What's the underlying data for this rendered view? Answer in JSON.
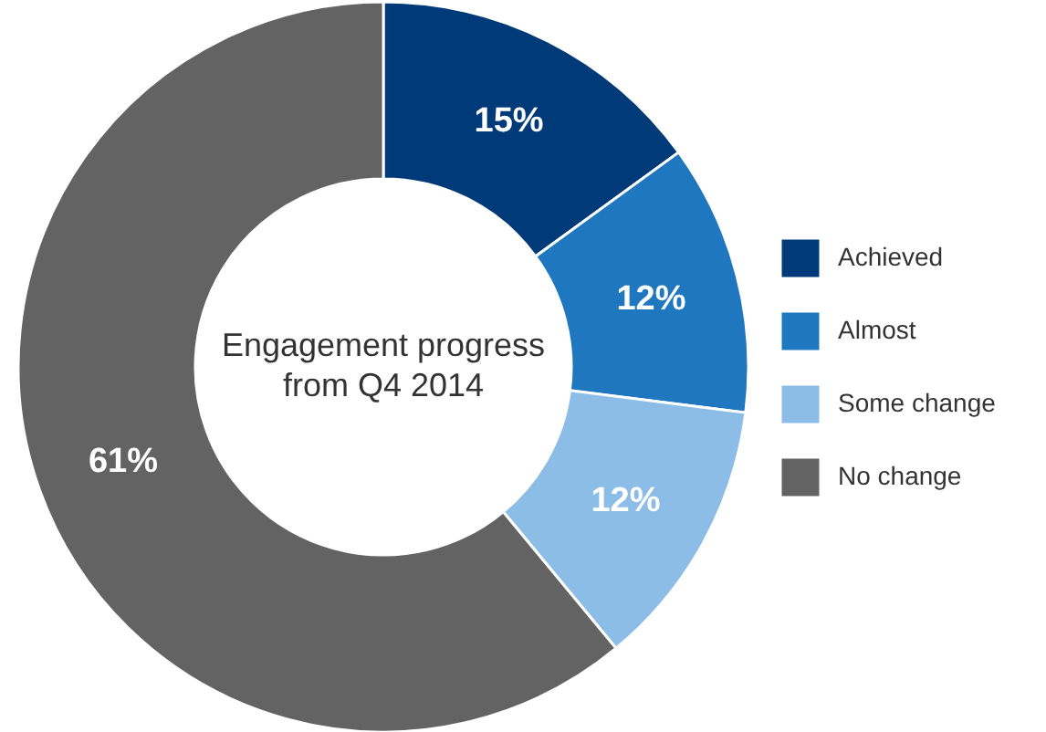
{
  "chart_data": {
    "type": "donut",
    "title": "Engagement progress from Q4 2014",
    "categories": [
      "Achieved",
      "Almost",
      "Some change",
      "No change"
    ],
    "values": [
      15,
      12,
      12,
      61
    ],
    "colors": [
      "#003a78",
      "#1f77c0",
      "#8bbde6",
      "#636363"
    ],
    "value_labels": [
      "15%",
      "12%",
      "12%",
      "61%"
    ],
    "legend": "right"
  }
}
